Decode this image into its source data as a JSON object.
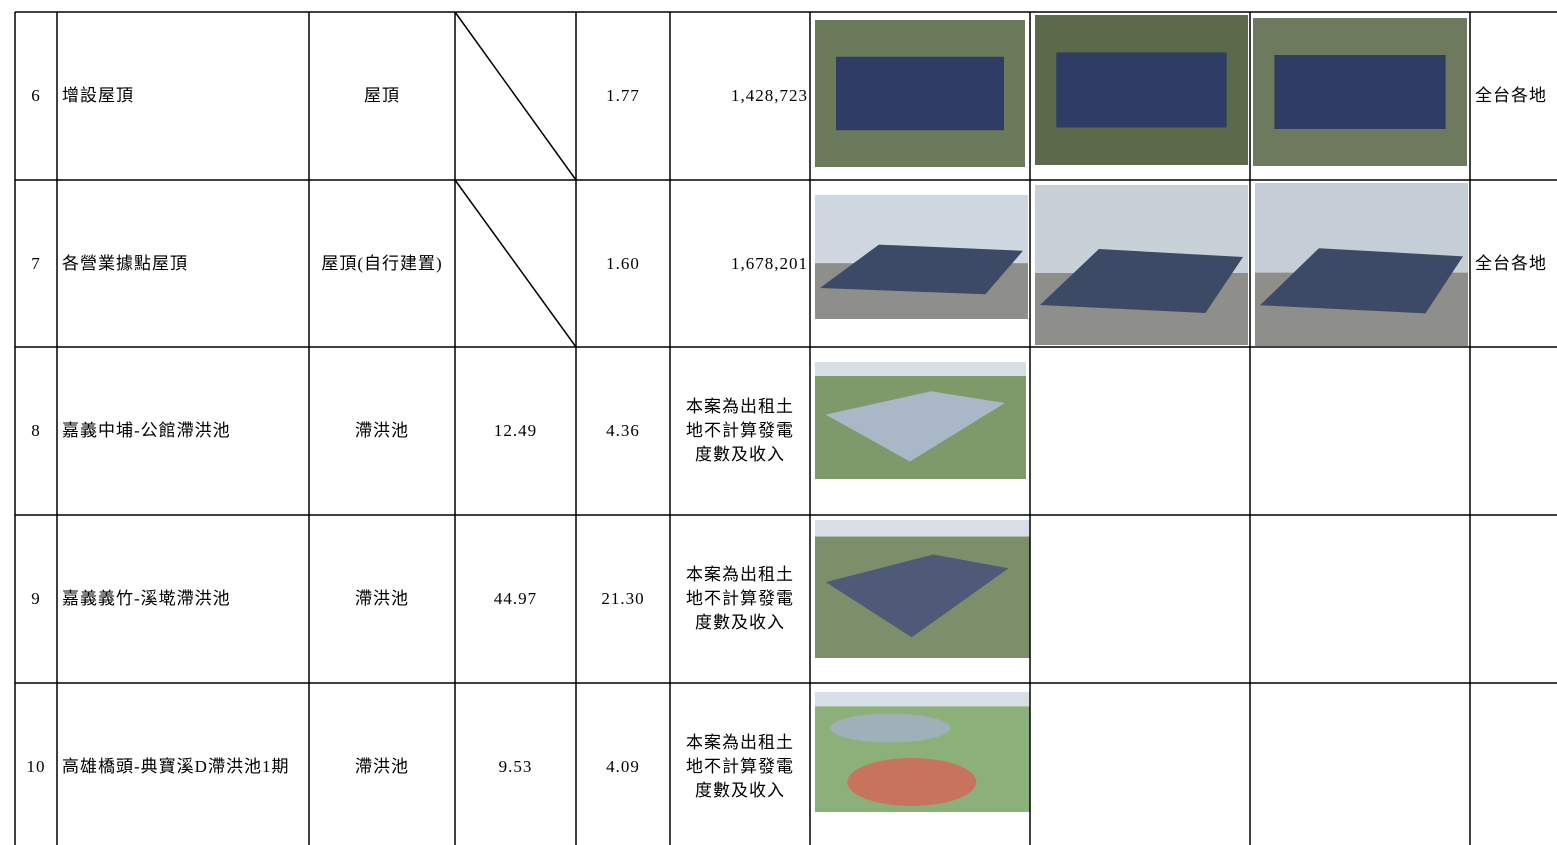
{
  "table": {
    "rows": [
      {
        "no": "6",
        "name": "增設屋頂",
        "type": "屋頂",
        "area": null,
        "capacity": "1.77",
        "generation": "1,428,723",
        "region": "全台各地"
      },
      {
        "no": "7",
        "name": "各營業據點屋頂",
        "type": "屋頂(自行建置)",
        "area": null,
        "capacity": "1.60",
        "generation": "1,678,201",
        "region": "全台各地"
      },
      {
        "no": "8",
        "name": "嘉義中埔-公館滯洪池",
        "type": "滯洪池",
        "area": "12.49",
        "capacity": "4.36",
        "generation": "本案為出租土地不計算發電度數及收入",
        "region": null
      },
      {
        "no": "9",
        "name": "嘉義義竹-溪墘滯洪池",
        "type": "滯洪池",
        "area": "44.97",
        "capacity": "21.30",
        "generation": "本案為出租土地不計算發電度數及收入",
        "region": null
      },
      {
        "no": "10",
        "name": "高雄橋頭-典寶溪D滯洪池1期",
        "type": "滯洪池",
        "area": "9.53",
        "capacity": "4.09",
        "generation": "本案為出租土地不計算發電度數及收入",
        "region": null
      }
    ]
  }
}
